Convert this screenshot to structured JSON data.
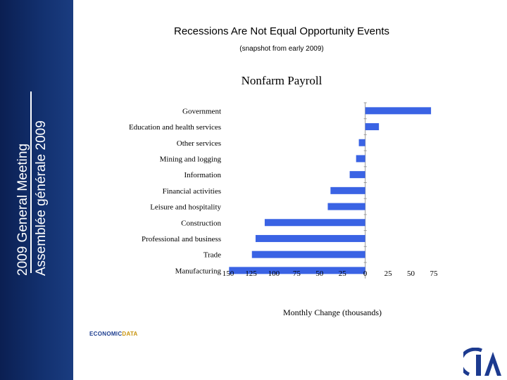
{
  "sidebar": {
    "line1": "2009 General Meeting",
    "line2": "Assemblée générale 2009"
  },
  "slide": {
    "title": "Recessions Are Not Equal Opportunity Events",
    "subtitle": "(snapshot from early 2009)"
  },
  "logos": {
    "econ_part1": "ECONOMIC",
    "econ_part2": "DATA"
  },
  "chart_data": {
    "type": "bar",
    "orientation": "horizontal",
    "title": "Nonfarm Payroll",
    "xlabel": "Monthly Change (thousands)",
    "ylabel": "",
    "categories": [
      "Government",
      "Education and health services",
      "Other services",
      "Mining and logging",
      "Information",
      "Financial activities",
      "Leisure and hospitality",
      "Construction",
      "Professional and business",
      "Trade",
      "Manufacturing"
    ],
    "values": [
      72,
      15,
      -7,
      -10,
      -17,
      -38,
      -41,
      -110,
      -120,
      -124,
      -149
    ],
    "xlim": [
      -150,
      75
    ],
    "xticks": [
      -150,
      -125,
      -100,
      -75,
      -50,
      -25,
      0,
      25,
      50,
      75
    ],
    "xtick_labels": [
      "150",
      "125",
      "100",
      "75",
      "50",
      "25",
      "0",
      "25",
      "50",
      "75"
    ],
    "grid": false,
    "legend": "none",
    "bar_color": "#3a63e4"
  }
}
